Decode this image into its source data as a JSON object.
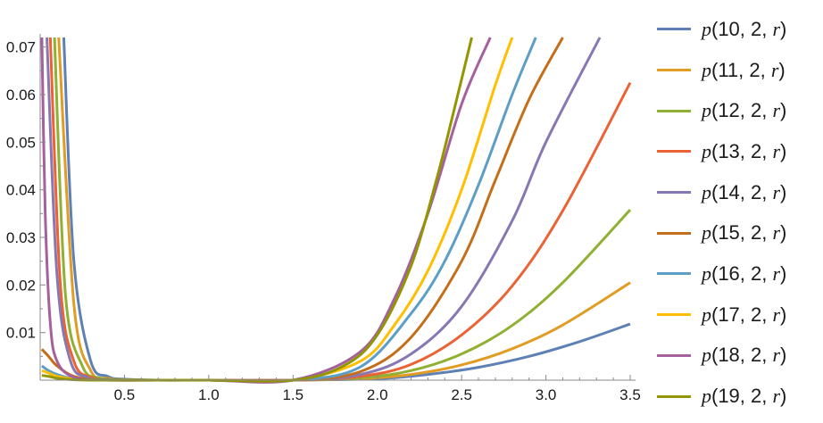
{
  "chart_data": {
    "type": "line",
    "title": "",
    "xlabel": "",
    "ylabel": "",
    "xlim": [
      0,
      3.5
    ],
    "ylim": [
      0,
      0.072
    ],
    "x_ticks": [
      "0.5",
      "1.0",
      "1.5",
      "2.0",
      "2.5",
      "3.0",
      "3.5"
    ],
    "y_ticks": [
      "0.01",
      "0.02",
      "0.03",
      "0.04",
      "0.05",
      "0.06",
      "0.07"
    ],
    "grid": false,
    "legend_position": "right",
    "series": [
      {
        "name": "p(10, 2, r)",
        "color": "#5e81b5",
        "x": [
          0.14,
          0.2,
          0.3,
          0.4,
          0.5,
          0.7,
          1.0,
          1.5,
          2.0,
          2.3,
          2.6,
          2.9,
          3.2,
          3.5
        ],
        "y": [
          0.072,
          0.025,
          0.004,
          0.0008,
          0.0002,
          0.0,
          0.0,
          0.0,
          0.0003,
          0.0012,
          0.0027,
          0.005,
          0.0081,
          0.0118
        ]
      },
      {
        "name": "p(11, 2, r)",
        "color": "#e19c24",
        "x": [
          0.11,
          0.2,
          0.3,
          0.4,
          0.5,
          0.7,
          1.0,
          1.5,
          1.9,
          2.2,
          2.5,
          2.8,
          3.1,
          3.5
        ],
        "y": [
          0.072,
          0.016,
          0.002,
          0.0004,
          0.0001,
          0.0,
          0.0,
          0.0,
          0.0003,
          0.0012,
          0.0032,
          0.0066,
          0.0116,
          0.0205
        ]
      },
      {
        "name": "p(12, 2, r)",
        "color": "#8fb032",
        "x": [
          0.085,
          0.15,
          0.25,
          0.35,
          0.5,
          0.7,
          1.0,
          1.5,
          1.9,
          2.2,
          2.5,
          2.8,
          3.1,
          3.5
        ],
        "y": [
          0.072,
          0.018,
          0.003,
          0.0005,
          0.0001,
          0.0,
          0.0,
          0.0,
          0.0005,
          0.002,
          0.0055,
          0.0115,
          0.0205,
          0.0358
        ]
      },
      {
        "name": "p(13, 2, r)",
        "color": "#eb6235",
        "x": [
          0.06,
          0.12,
          0.2,
          0.3,
          0.45,
          0.7,
          1.0,
          1.5,
          1.9,
          2.2,
          2.5,
          2.8,
          3.1,
          3.5
        ],
        "y": [
          0.072,
          0.02,
          0.004,
          0.0006,
          0.0001,
          0.0,
          0.0,
          0.0,
          0.0008,
          0.0033,
          0.0095,
          0.0198,
          0.0356,
          0.0625
        ]
      },
      {
        "name": "p(14, 2, r)",
        "color": "#8778b3",
        "x": [
          0.04,
          0.1,
          0.18,
          0.28,
          0.4,
          0.7,
          1.0,
          1.5,
          1.9,
          2.2,
          2.5,
          2.8,
          3.0,
          3.32
        ],
        "y": [
          0.072,
          0.022,
          0.004,
          0.0006,
          0.0001,
          0.0,
          0.0,
          0.0,
          0.0012,
          0.0055,
          0.0155,
          0.0335,
          0.05,
          0.072
        ]
      },
      {
        "name": "p(15, 2, r)",
        "color": "#c56e1a",
        "x": [
          0.01,
          0.05,
          0.1,
          0.2,
          0.35,
          0.7,
          1.0,
          1.5,
          1.9,
          2.2,
          2.5,
          2.7,
          2.9,
          3.1
        ],
        "y": [
          0.0065,
          0.005,
          0.003,
          0.0008,
          0.0001,
          0.0,
          0.0,
          0.0,
          0.0018,
          0.009,
          0.025,
          0.042,
          0.059,
          0.072
        ]
      },
      {
        "name": "p(16, 2, r)",
        "color": "#5d9ec7",
        "x": [
          0.01,
          0.05,
          0.1,
          0.2,
          0.35,
          0.7,
          1.0,
          1.5,
          1.9,
          2.2,
          2.4,
          2.6,
          2.8,
          2.94
        ],
        "y": [
          0.003,
          0.002,
          0.0012,
          0.0003,
          0.0001,
          0.0,
          0.0,
          0.0,
          0.0028,
          0.014,
          0.025,
          0.041,
          0.06,
          0.072
        ]
      },
      {
        "name": "p(17, 2, r)",
        "color": "#ffbf00",
        "x": [
          0.01,
          0.05,
          0.1,
          0.2,
          0.35,
          0.7,
          1.0,
          1.5,
          1.9,
          2.1,
          2.3,
          2.5,
          2.7,
          2.8
        ],
        "y": [
          0.002,
          0.0015,
          0.0008,
          0.0002,
          0.0,
          0.0,
          0.0,
          0.0,
          0.004,
          0.0115,
          0.023,
          0.04,
          0.062,
          0.072
        ]
      },
      {
        "name": "p(18, 2, r)",
        "color": "#a5609d",
        "x": [
          0.01,
          0.03,
          0.06,
          0.1,
          0.2,
          0.4,
          0.7,
          1.0,
          1.5,
          1.9,
          2.1,
          2.3,
          2.5,
          2.67
        ],
        "y": [
          0.072,
          0.035,
          0.012,
          0.004,
          0.0006,
          0.0,
          0.0,
          0.0,
          0.0,
          0.006,
          0.017,
          0.035,
          0.058,
          0.072
        ]
      },
      {
        "name": "p(19, 2, r)",
        "color": "#929600",
        "x": [
          0.01,
          0.05,
          0.1,
          0.2,
          0.35,
          0.7,
          1.0,
          1.5,
          1.8,
          2.0,
          2.2,
          2.35,
          2.45,
          2.56
        ],
        "y": [
          0.001,
          0.0008,
          0.0004,
          0.0001,
          0.0,
          0.0,
          0.0,
          0.0,
          0.003,
          0.0095,
          0.024,
          0.042,
          0.056,
          0.072
        ]
      }
    ]
  }
}
